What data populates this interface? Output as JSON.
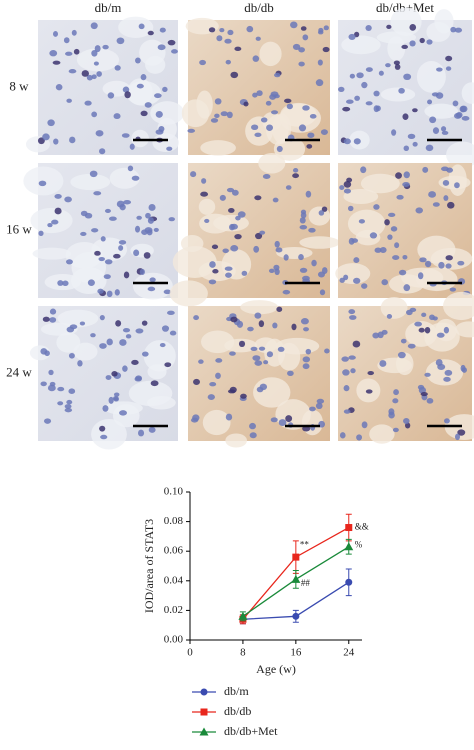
{
  "panels": {
    "columns": [
      "db/m",
      "db/db",
      "db/db+Met"
    ],
    "rows": [
      "8 w",
      "16 w",
      "24 w"
    ]
  },
  "chart_data": {
    "type": "line",
    "x_label": "Age (w)",
    "y_label": "IOD/area of STAT3",
    "x": [
      8,
      16,
      24
    ],
    "xlim": [
      0,
      26
    ],
    "xticks": [
      0,
      8,
      16,
      24
    ],
    "ylim": [
      0,
      0.1
    ],
    "yticks": [
      {
        "value": 0,
        "label": "0.00"
      },
      {
        "value": 0.02,
        "label": "0.02"
      },
      {
        "value": 0.04,
        "label": "0.04"
      },
      {
        "value": 0.06,
        "label": "0.06"
      },
      {
        "value": 0.08,
        "label": "0.08"
      },
      {
        "value": 0.1,
        "label": "0.10"
      }
    ],
    "series": [
      {
        "name": "db/m",
        "color": "#3a4bb0",
        "marker": "circle",
        "values": [
          0.014,
          0.016,
          0.039
        ],
        "errors": [
          0.003,
          0.004,
          0.009
        ]
      },
      {
        "name": "db/db",
        "color": "#e8261c",
        "marker": "square",
        "values": [
          0.014,
          0.056,
          0.076
        ],
        "errors": [
          0.003,
          0.011,
          0.009
        ]
      },
      {
        "name": "db/db+Met",
        "color": "#1a8a3a",
        "marker": "triangle",
        "values": [
          0.016,
          0.041,
          0.063
        ],
        "errors": [
          0.003,
          0.006,
          0.005
        ]
      }
    ],
    "annotations": [
      "**",
      "##",
      "&&",
      "%"
    ]
  }
}
